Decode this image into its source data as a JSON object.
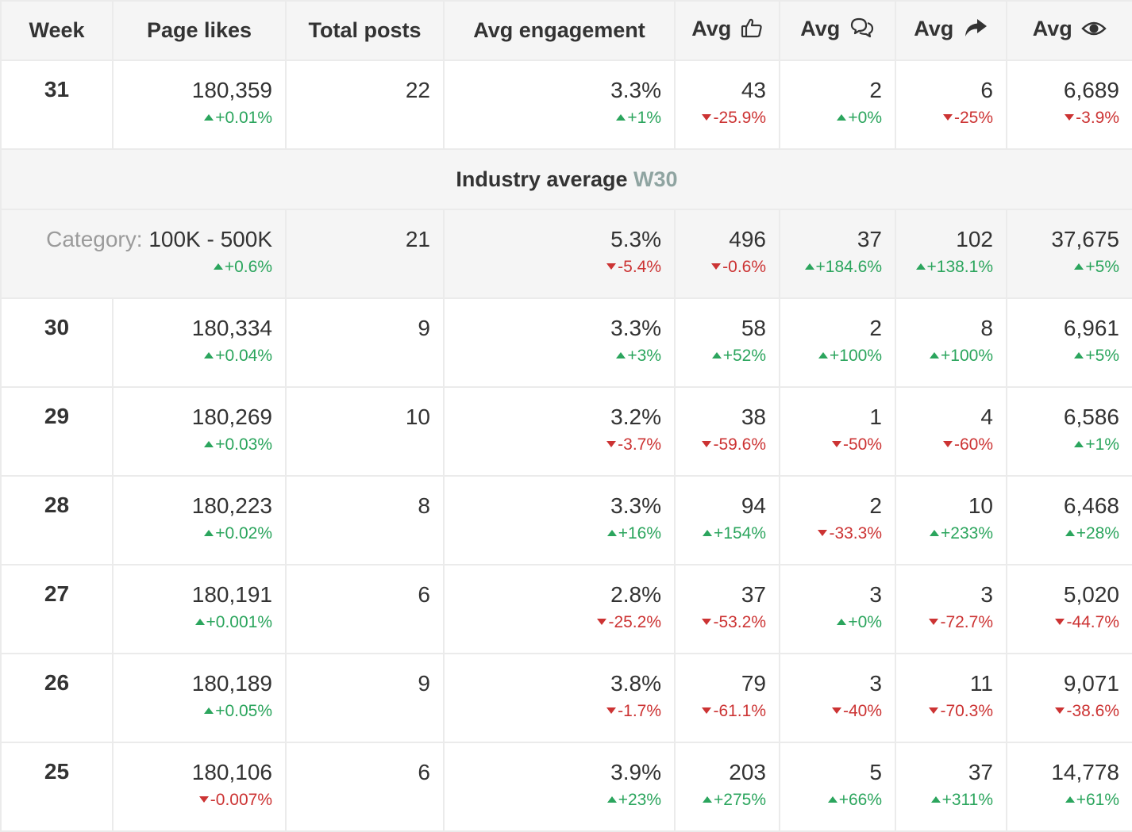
{
  "headers": {
    "week": "Week",
    "page_likes": "Page likes",
    "total_posts": "Total posts",
    "avg_engagement": "Avg engagement",
    "avg_likes": "Avg",
    "avg_comments": "Avg",
    "avg_shares": "Avg",
    "avg_views": "Avg"
  },
  "icons": {
    "likes": "thumbs-up-icon",
    "comments": "comments-icon",
    "shares": "share-icon",
    "views": "eye-icon"
  },
  "colors": {
    "up": "#2ba55d",
    "down": "#cc3333",
    "muted": "#8fa4a1"
  },
  "current_week": {
    "week": "31",
    "page_likes": "180,359",
    "page_likes_chg": "+0.01%",
    "page_likes_dir": "up",
    "total_posts": "22",
    "engagement": "3.3%",
    "engagement_chg": "+1%",
    "engagement_dir": "up",
    "likes": "43",
    "likes_chg": "-25.9%",
    "likes_dir": "down",
    "comments": "2",
    "comments_chg": "+0%",
    "comments_dir": "up",
    "shares": "6",
    "shares_chg": "-25%",
    "shares_dir": "down",
    "views": "6,689",
    "views_chg": "-3.9%",
    "views_dir": "down"
  },
  "industry": {
    "title": "Industry average",
    "week_label": "W30",
    "category_label": "Category:",
    "category_value": "100K - 500K",
    "category_chg": "+0.6%",
    "category_dir": "up",
    "total_posts": "21",
    "engagement": "5.3%",
    "engagement_chg": "-5.4%",
    "engagement_dir": "down",
    "likes": "496",
    "likes_chg": "-0.6%",
    "likes_dir": "down",
    "comments": "37",
    "comments_chg": "+184.6%",
    "comments_dir": "up",
    "shares": "102",
    "shares_chg": "+138.1%",
    "shares_dir": "up",
    "views": "37,675",
    "views_chg": "+5%",
    "views_dir": "up"
  },
  "rows": [
    {
      "week": "30",
      "page_likes": "180,334",
      "page_likes_chg": "+0.04%",
      "page_likes_dir": "up",
      "total_posts": "9",
      "engagement": "3.3%",
      "engagement_chg": "+3%",
      "engagement_dir": "up",
      "likes": "58",
      "likes_chg": "+52%",
      "likes_dir": "up",
      "comments": "2",
      "comments_chg": "+100%",
      "comments_dir": "up",
      "shares": "8",
      "shares_chg": "+100%",
      "shares_dir": "up",
      "views": "6,961",
      "views_chg": "+5%",
      "views_dir": "up"
    },
    {
      "week": "29",
      "page_likes": "180,269",
      "page_likes_chg": "+0.03%",
      "page_likes_dir": "up",
      "total_posts": "10",
      "engagement": "3.2%",
      "engagement_chg": "-3.7%",
      "engagement_dir": "down",
      "likes": "38",
      "likes_chg": "-59.6%",
      "likes_dir": "down",
      "comments": "1",
      "comments_chg": "-50%",
      "comments_dir": "down",
      "shares": "4",
      "shares_chg": "-60%",
      "shares_dir": "down",
      "views": "6,586",
      "views_chg": "+1%",
      "views_dir": "up"
    },
    {
      "week": "28",
      "page_likes": "180,223",
      "page_likes_chg": "+0.02%",
      "page_likes_dir": "up",
      "total_posts": "8",
      "engagement": "3.3%",
      "engagement_chg": "+16%",
      "engagement_dir": "up",
      "likes": "94",
      "likes_chg": "+154%",
      "likes_dir": "up",
      "comments": "2",
      "comments_chg": "-33.3%",
      "comments_dir": "down",
      "shares": "10",
      "shares_chg": "+233%",
      "shares_dir": "up",
      "views": "6,468",
      "views_chg": "+28%",
      "views_dir": "up"
    },
    {
      "week": "27",
      "page_likes": "180,191",
      "page_likes_chg": "+0.001%",
      "page_likes_dir": "up",
      "total_posts": "6",
      "engagement": "2.8%",
      "engagement_chg": "-25.2%",
      "engagement_dir": "down",
      "likes": "37",
      "likes_chg": "-53.2%",
      "likes_dir": "down",
      "comments": "3",
      "comments_chg": "+0%",
      "comments_dir": "up",
      "shares": "3",
      "shares_chg": "-72.7%",
      "shares_dir": "down",
      "views": "5,020",
      "views_chg": "-44.7%",
      "views_dir": "down"
    },
    {
      "week": "26",
      "page_likes": "180,189",
      "page_likes_chg": "+0.05%",
      "page_likes_dir": "up",
      "total_posts": "9",
      "engagement": "3.8%",
      "engagement_chg": "-1.7%",
      "engagement_dir": "down",
      "likes": "79",
      "likes_chg": "-61.1%",
      "likes_dir": "down",
      "comments": "3",
      "comments_chg": "-40%",
      "comments_dir": "down",
      "shares": "11",
      "shares_chg": "-70.3%",
      "shares_dir": "down",
      "views": "9,071",
      "views_chg": "-38.6%",
      "views_dir": "down"
    },
    {
      "week": "25",
      "page_likes": "180,106",
      "page_likes_chg": "-0.007%",
      "page_likes_dir": "down",
      "total_posts": "6",
      "engagement": "3.9%",
      "engagement_chg": "+23%",
      "engagement_dir": "up",
      "likes": "203",
      "likes_chg": "+275%",
      "likes_dir": "up",
      "comments": "5",
      "comments_chg": "+66%",
      "comments_dir": "up",
      "shares": "37",
      "shares_chg": "+311%",
      "shares_dir": "up",
      "views": "14,778",
      "views_chg": "+61%",
      "views_dir": "up"
    }
  ]
}
